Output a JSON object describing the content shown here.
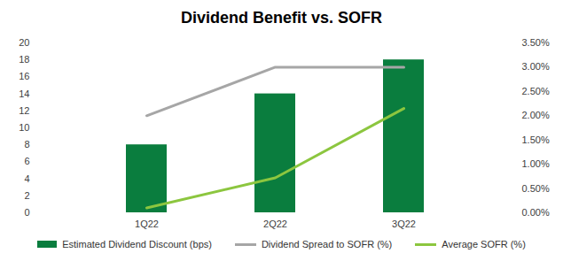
{
  "chart_data": {
    "type": "bar",
    "title": "Dividend Benefit vs. SOFR",
    "categories": [
      "1Q22",
      "2Q22",
      "3Q22"
    ],
    "series": [
      {
        "name": "Estimated Dividend Discount (bps)",
        "type": "bar",
        "color": "#0a7d3e",
        "values": [
          8,
          14,
          18
        ]
      },
      {
        "name": "Dividend Spread to SOFR (%)",
        "type": "line",
        "axis": "y2",
        "color": "#a6a6a6",
        "values": [
          2.0,
          3.0,
          3.0
        ]
      },
      {
        "name": "Average SOFR (%)",
        "type": "line",
        "axis": "y2",
        "color": "#8cc63f",
        "values": [
          0.1,
          0.72,
          2.15
        ]
      }
    ],
    "ylim": [
      0,
      20
    ],
    "yticks": [
      0,
      2,
      4,
      6,
      8,
      10,
      12,
      14,
      16,
      18,
      20
    ],
    "y2lim": [
      0,
      3.5
    ],
    "y2ticks": [
      {
        "value": 0,
        "label": "0.00%"
      },
      {
        "value": 0.5,
        "label": "0.50%"
      },
      {
        "value": 1,
        "label": "1.00%"
      },
      {
        "value": 1.5,
        "label": "1.50%"
      },
      {
        "value": 2,
        "label": "2.00%"
      },
      {
        "value": 2.5,
        "label": "2.50%"
      },
      {
        "value": 3,
        "label": "3.00%"
      },
      {
        "value": 3.5,
        "label": "3.50%"
      }
    ],
    "grid": false,
    "legend": "bottom"
  }
}
